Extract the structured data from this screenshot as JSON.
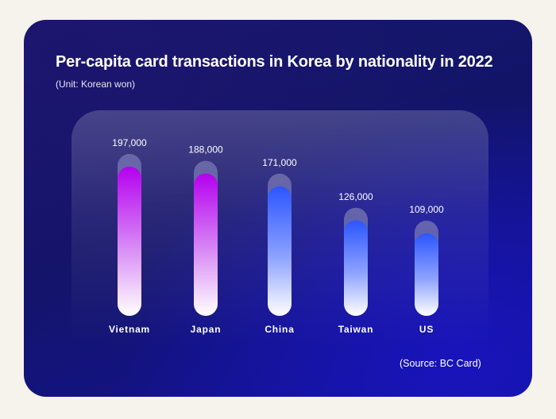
{
  "chart_data": {
    "type": "bar",
    "title": "Per-capita card transactions in Korea by nationality in 2022",
    "subtitle": "(Unit: Korean won)",
    "source": "(Source: BC Card)",
    "categories": [
      "Vietnam",
      "Japan",
      "China",
      "Taiwan",
      "US"
    ],
    "values": [
      197000,
      188000,
      171000,
      126000,
      109000
    ],
    "value_labels": [
      "197,000",
      "188,000",
      "171,000",
      "126,000",
      "109,000"
    ],
    "ylim": [
      0,
      197000
    ],
    "grid": false,
    "legend": "none",
    "colors": {
      "purple_top": "#b400ee",
      "blue_top": "#2b55ff",
      "bar_bottom": "#ffffff",
      "cap": "#7a78b4"
    },
    "bar_color_groups": [
      "purple",
      "purple",
      "blue",
      "blue",
      "blue"
    ]
  }
}
